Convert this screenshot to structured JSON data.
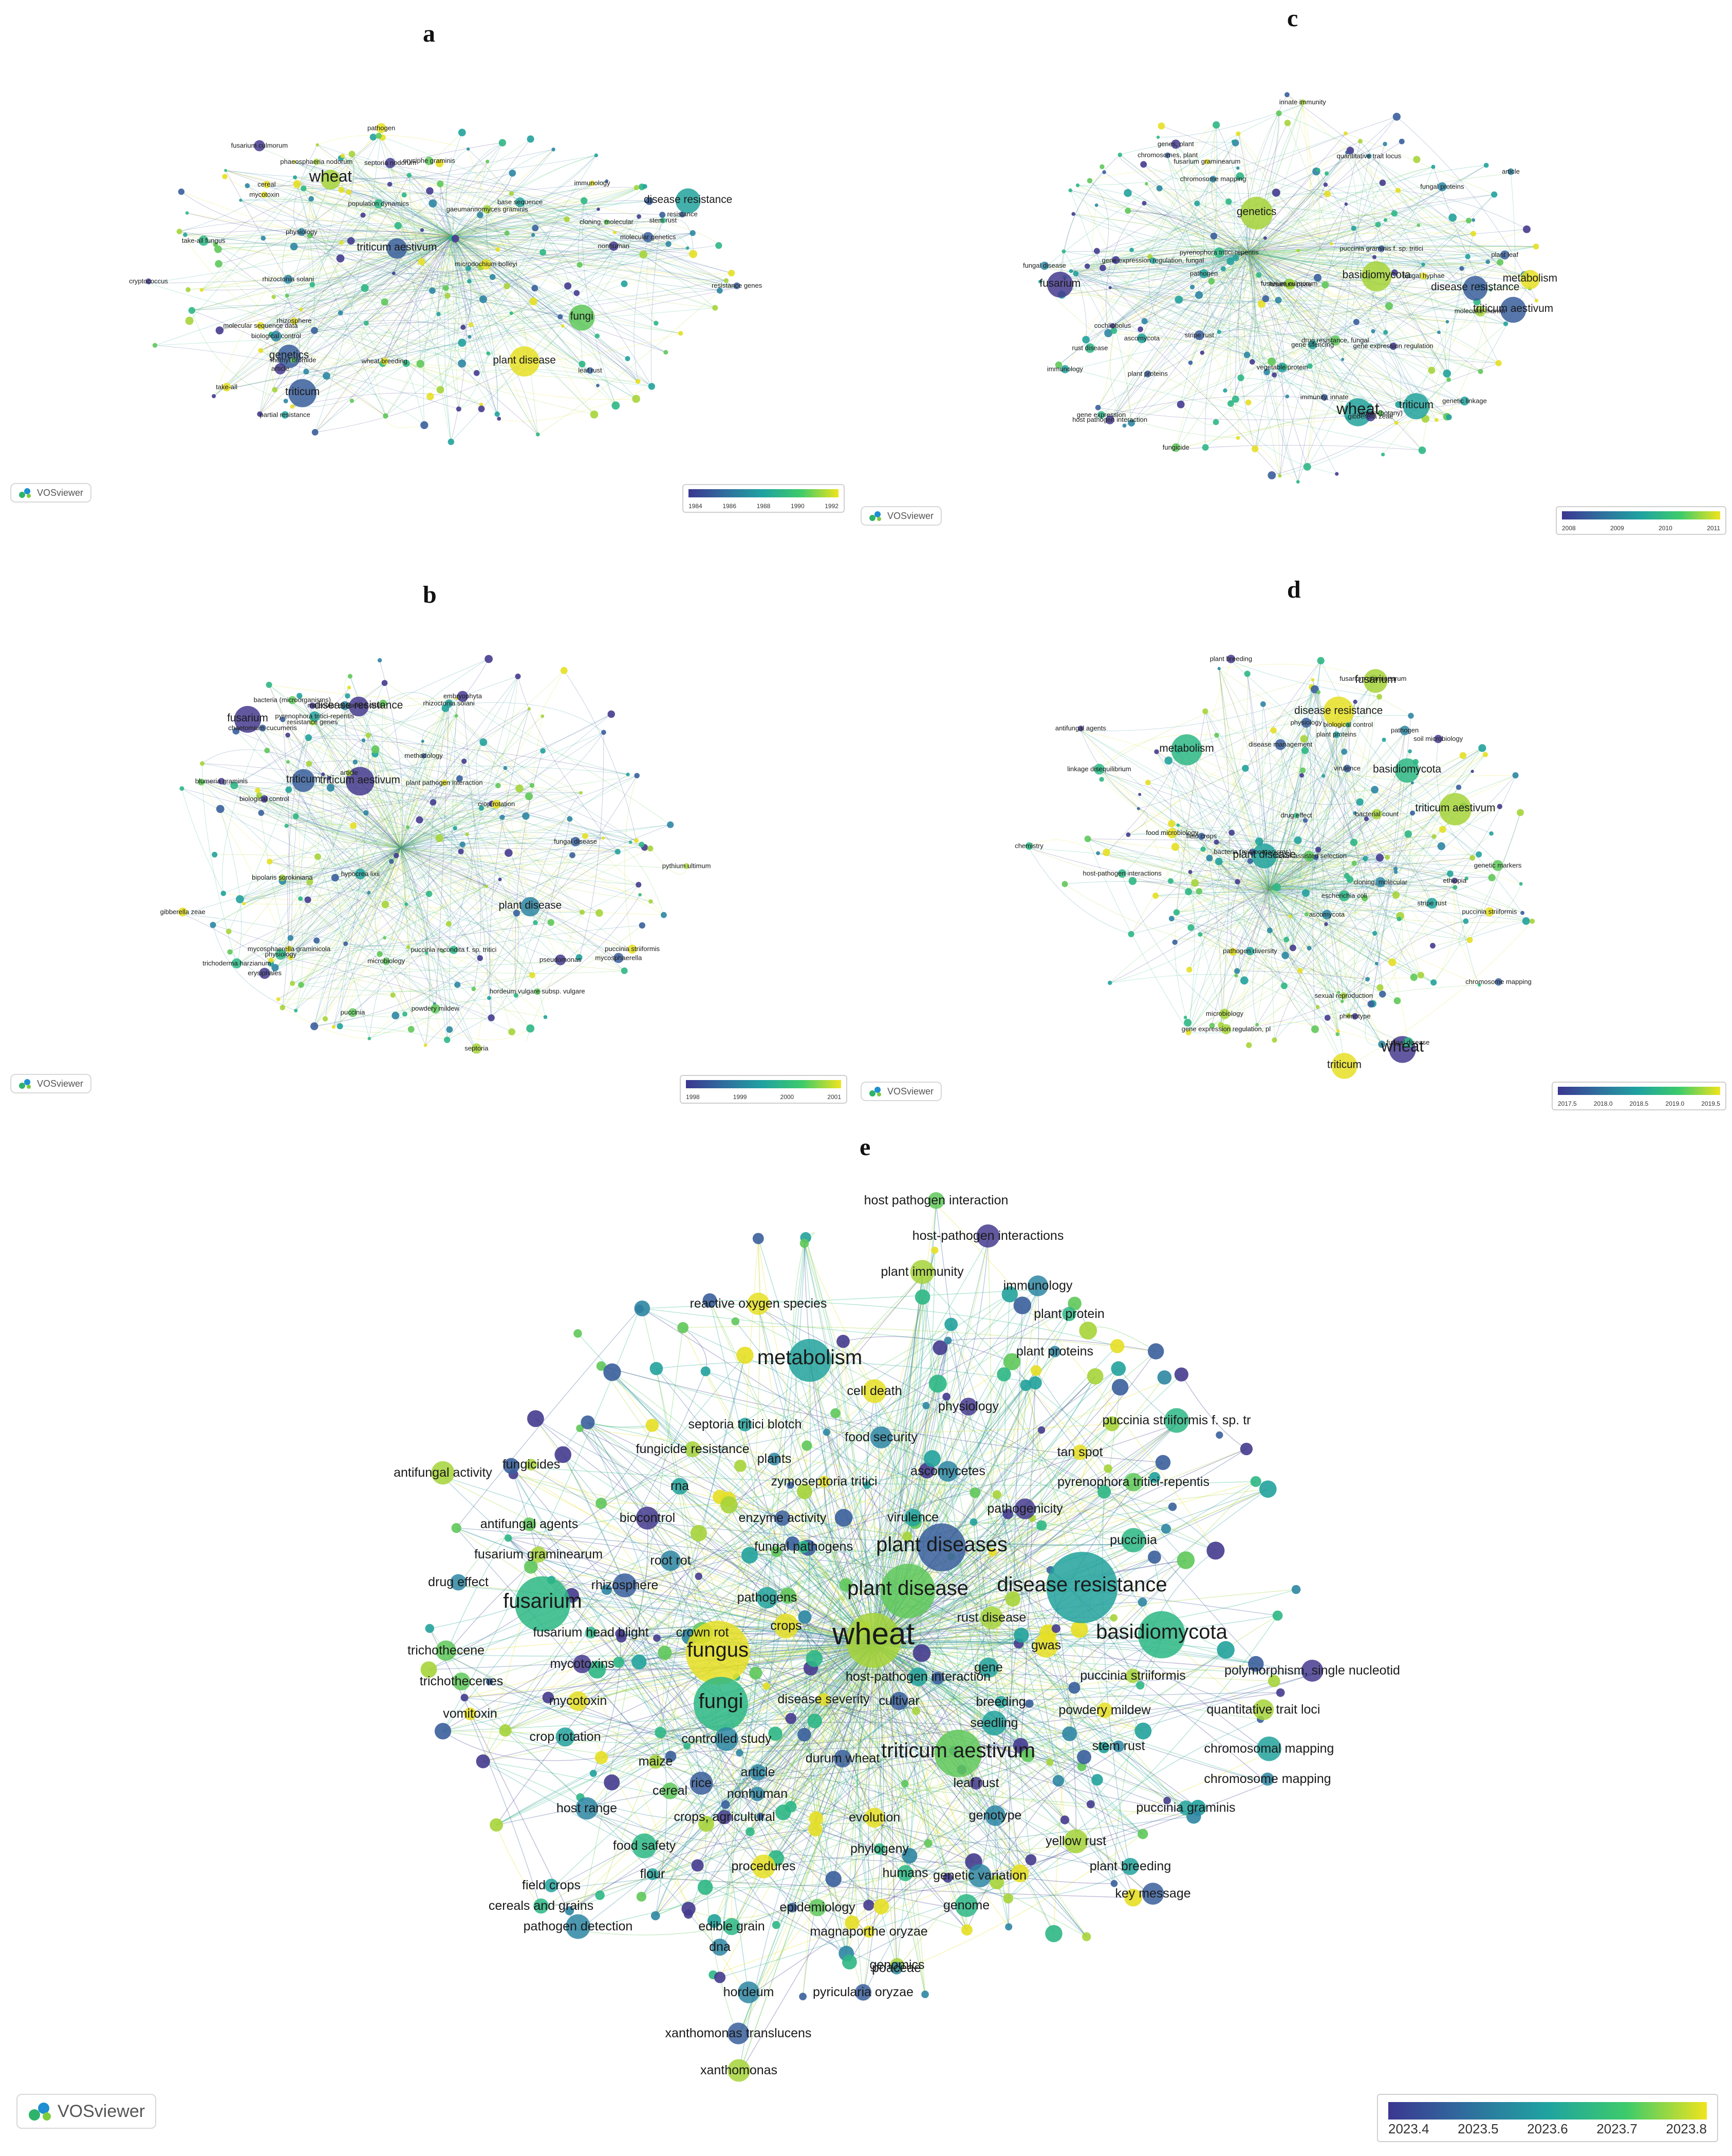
{
  "brand_label": "VOSviewer",
  "panels": [
    {
      "id": "a",
      "letter": "a",
      "timeline": [
        "1984",
        "1986",
        "1988",
        "1990",
        "1992"
      ],
      "labels": [
        {
          "t": "resistance genes"
        },
        {
          "t": "wheat breeding"
        },
        {
          "t": "septoria nodorum"
        },
        {
          "t": "partial resistance"
        },
        {
          "t": "erysiphe graminis"
        },
        {
          "t": "phaeosphaeria nodorum"
        },
        {
          "t": "gaeumannomyces graminis"
        },
        {
          "t": "take-all"
        },
        {
          "t": "triticum aestivum"
        },
        {
          "t": "wheat"
        },
        {
          "t": "resistance"
        },
        {
          "t": "leaf rust"
        },
        {
          "t": "stem rust"
        },
        {
          "t": "cereal"
        },
        {
          "t": "disease resistance"
        },
        {
          "t": "genetics"
        },
        {
          "t": "base sequence"
        },
        {
          "t": "plant disease"
        },
        {
          "t": "molecular sequence data"
        },
        {
          "t": "molecular genetics"
        },
        {
          "t": "pathogen"
        },
        {
          "t": "fungi"
        },
        {
          "t": "take-all fungus"
        },
        {
          "t": "rhizosphere"
        },
        {
          "t": "microdochium bolleyi"
        },
        {
          "t": "methyl bromide"
        },
        {
          "t": "fusarium culmorum"
        },
        {
          "t": "rhizoctonia solani"
        },
        {
          "t": "biological control"
        },
        {
          "t": "article"
        },
        {
          "t": "triticum"
        },
        {
          "t": "physiology"
        },
        {
          "t": "cloning, molecular"
        },
        {
          "t": "immunology"
        },
        {
          "t": "mycotoxin"
        },
        {
          "t": "cryptococcus"
        },
        {
          "t": "nonhuman"
        },
        {
          "t": "population dynamics"
        }
      ]
    },
    {
      "id": "b",
      "letter": "b",
      "timeline": [
        "1998",
        "1999",
        "2000",
        "2001"
      ],
      "labels": [
        {
          "t": "puccinia recondita f. sp. tritici"
        },
        {
          "t": "puccinia striiformis"
        },
        {
          "t": "resistance genes"
        },
        {
          "t": "puccinia"
        },
        {
          "t": "mycosphaerella"
        },
        {
          "t": "powdery mildew"
        },
        {
          "t": "mycosphaerella graminicola"
        },
        {
          "t": "plant pathogen interaction"
        },
        {
          "t": "disease resistance"
        },
        {
          "t": "erysiphales"
        },
        {
          "t": "blumeria graminis"
        },
        {
          "t": "embryophyta"
        },
        {
          "t": "pyrenophora tritici-repentis"
        },
        {
          "t": "fungal disease"
        },
        {
          "t": "triticum aestivum"
        },
        {
          "t": "plant disease"
        },
        {
          "t": "triticum"
        },
        {
          "t": "hordeum vulgare subsp. vulgare"
        },
        {
          "t": "bacteria (microorganisms)"
        },
        {
          "t": "fusarium"
        },
        {
          "t": "gibberella zeae"
        },
        {
          "t": "article"
        },
        {
          "t": "microbiology"
        },
        {
          "t": "biological control"
        },
        {
          "t": "rhizoctonia solani"
        },
        {
          "t": "trichoderma harzianum"
        },
        {
          "t": "pythium ultimum"
        },
        {
          "t": "bipolaris sorokiniana"
        },
        {
          "t": "crop rotation"
        },
        {
          "t": "septoria"
        },
        {
          "t": "molecular sequence data"
        },
        {
          "t": "physiology"
        },
        {
          "t": "chaetomium cucumeris"
        },
        {
          "t": "hypocrea lixii"
        },
        {
          "t": "pseudomonas"
        },
        {
          "t": "methodology"
        }
      ]
    },
    {
      "id": "c",
      "letter": "c",
      "timeline": [
        "2008",
        "2009",
        "2010",
        "2011"
      ],
      "labels": [
        {
          "t": "genetic linkage"
        },
        {
          "t": "chromosome mapping"
        },
        {
          "t": "molecular marker"
        },
        {
          "t": "chromosomes, plant"
        },
        {
          "t": "stripe rust"
        },
        {
          "t": "quantitative trait locus"
        },
        {
          "t": "puccinia graminis f. sp. tritici"
        },
        {
          "t": "pyrenophora tritici-repentis"
        },
        {
          "t": "plants (botany)"
        },
        {
          "t": "innate immunity"
        },
        {
          "t": "basidiomycota"
        },
        {
          "t": "rust disease"
        },
        {
          "t": "immunity, innate"
        },
        {
          "t": "genes, plant"
        },
        {
          "t": "immunology"
        },
        {
          "t": "disease resistance"
        },
        {
          "t": "triticum aestivum"
        },
        {
          "t": "genetics"
        },
        {
          "t": "triticum"
        },
        {
          "t": "plant proteins"
        },
        {
          "t": "wheat"
        },
        {
          "t": "article"
        },
        {
          "t": "host pathogen interaction"
        },
        {
          "t": "vegetable protein"
        },
        {
          "t": "gene silencing"
        },
        {
          "t": "pathogen"
        },
        {
          "t": "fungal disease"
        },
        {
          "t": "ascomycota"
        },
        {
          "t": "plant leaf"
        },
        {
          "t": "fusarium"
        },
        {
          "t": "gene expression"
        },
        {
          "t": "metabolism"
        },
        {
          "t": "gene expression regulation"
        },
        {
          "t": "gibberella zeae"
        },
        {
          "t": "fusarium graminearum"
        },
        {
          "t": "fungicide"
        },
        {
          "t": "fungal proteins"
        },
        {
          "t": "fungal hyphae"
        },
        {
          "t": "drug resistance, fungal"
        },
        {
          "t": "gene expression regulation, fungal"
        },
        {
          "t": "cochliobolus"
        },
        {
          "t": "fusarium culmorum"
        },
        {
          "t": "fusarium poae"
        }
      ]
    },
    {
      "id": "d",
      "letter": "d",
      "timeline": [
        "2017.5",
        "2018.0",
        "2018.5",
        "2019.0",
        "2019.5"
      ],
      "labels": [
        {
          "t": "cloning, molecular"
        },
        {
          "t": "gene expression regulation, pl"
        },
        {
          "t": "plant proteins"
        },
        {
          "t": "metabolism"
        },
        {
          "t": "physiology"
        },
        {
          "t": "host-pathogen interactions"
        },
        {
          "t": "chemistry"
        },
        {
          "t": "microbiology"
        },
        {
          "t": "triticum"
        },
        {
          "t": "plant disease"
        },
        {
          "t": "fusarium graminearum"
        },
        {
          "t": "fusarium"
        },
        {
          "t": "wheat"
        },
        {
          "t": "ascomycota"
        },
        {
          "t": "basidiomycota"
        },
        {
          "t": "disease resistance"
        },
        {
          "t": "chromosome mapping"
        },
        {
          "t": "triticum aestivum"
        },
        {
          "t": "phenotype"
        },
        {
          "t": "genetic markers"
        },
        {
          "t": "pathogen"
        },
        {
          "t": "virulence"
        },
        {
          "t": "fungal disease"
        },
        {
          "t": "stripe rust"
        },
        {
          "t": "plant breeding"
        },
        {
          "t": "puccinia striiformis"
        },
        {
          "t": "linkage disequilibrium"
        },
        {
          "t": "marker-assisted selection"
        },
        {
          "t": "disease management"
        },
        {
          "t": "field crops"
        },
        {
          "t": "ethiopia"
        },
        {
          "t": "pathogen diversity"
        },
        {
          "t": "sexual reproduction"
        },
        {
          "t": "bacterial count"
        },
        {
          "t": "soil microbiology"
        },
        {
          "t": "bacteria (microorganisms)"
        },
        {
          "t": "biological control"
        },
        {
          "t": "antifungal agents"
        },
        {
          "t": "drug effect"
        },
        {
          "t": "escherichia coli"
        },
        {
          "t": "food microbiology"
        }
      ]
    },
    {
      "id": "e",
      "letter": "e",
      "timeline": [
        "2023.4",
        "2023.5",
        "2023.6",
        "2023.7",
        "2023.8"
      ],
      "labels": [
        {
          "t": "host pathogen interaction"
        },
        {
          "t": "host-pathogen interactions"
        },
        {
          "t": "plant immunity"
        },
        {
          "t": "immunology"
        },
        {
          "t": "reactive oxygen species"
        },
        {
          "t": "plant protein"
        },
        {
          "t": "plant proteins"
        },
        {
          "t": "metabolism"
        },
        {
          "t": "cell death"
        },
        {
          "t": "physiology"
        },
        {
          "t": "septoria tritici blotch"
        },
        {
          "t": "food security"
        },
        {
          "t": "puccinia striiformis f. sp. tr"
        },
        {
          "t": "fungicides"
        },
        {
          "t": "fungicide resistance"
        },
        {
          "t": "plants"
        },
        {
          "t": "tan spot"
        },
        {
          "t": "antifungal activity"
        },
        {
          "t": "rna"
        },
        {
          "t": "zymoseptoria tritici"
        },
        {
          "t": "ascomycetes"
        },
        {
          "t": "pyrenophora tritici-repentis"
        },
        {
          "t": "pathogenicity"
        },
        {
          "t": "antifungal agents"
        },
        {
          "t": "biocontrol"
        },
        {
          "t": "enzyme activity"
        },
        {
          "t": "virulence"
        },
        {
          "t": "fungal pathogens"
        },
        {
          "t": "plant diseases"
        },
        {
          "t": "puccinia"
        },
        {
          "t": "fusarium graminearum"
        },
        {
          "t": "root rot"
        },
        {
          "t": "drug effect"
        },
        {
          "t": "rhizosphere"
        },
        {
          "t": "plant disease"
        },
        {
          "t": "disease resistance"
        },
        {
          "t": "pathogens"
        },
        {
          "t": "fusarium"
        },
        {
          "t": "crops"
        },
        {
          "t": "rust disease"
        },
        {
          "t": "fusarium head blight"
        },
        {
          "t": "crown rot"
        },
        {
          "t": "wheat"
        },
        {
          "t": "basidiomycota"
        },
        {
          "t": "gwas"
        },
        {
          "t": "trichothecene"
        },
        {
          "t": "fungus"
        },
        {
          "t": "mycotoxins"
        },
        {
          "t": "gene"
        },
        {
          "t": "trichothecenes"
        },
        {
          "t": "host-pathogen interaction"
        },
        {
          "t": "puccinia striiformis"
        },
        {
          "t": "polymorphism, single nucleotid"
        },
        {
          "t": "breeding"
        },
        {
          "t": "mycotoxin"
        },
        {
          "t": "fungi"
        },
        {
          "t": "disease severity"
        },
        {
          "t": "cultivar"
        },
        {
          "t": "powdery mildew"
        },
        {
          "t": "quantitative trait loci"
        },
        {
          "t": "vomitoxin"
        },
        {
          "t": "seedling"
        },
        {
          "t": "crop rotation"
        },
        {
          "t": "controlled study"
        },
        {
          "t": "stem rust"
        },
        {
          "t": "chromosomal mapping"
        },
        {
          "t": "maize"
        },
        {
          "t": "durum wheat"
        },
        {
          "t": "triticum aestivum"
        },
        {
          "t": "article"
        },
        {
          "t": "chromosome mapping"
        },
        {
          "t": "cereal"
        },
        {
          "t": "rice"
        },
        {
          "t": "nonhuman"
        },
        {
          "t": "leaf rust"
        },
        {
          "t": "host range"
        },
        {
          "t": "puccinia graminis"
        },
        {
          "t": "genotype"
        },
        {
          "t": "crops, agricultural"
        },
        {
          "t": "evolution"
        },
        {
          "t": "yellow rust"
        },
        {
          "t": "food safety"
        },
        {
          "t": "phylogeny"
        },
        {
          "t": "plant breeding"
        },
        {
          "t": "procedures"
        },
        {
          "t": "flour"
        },
        {
          "t": "humans"
        },
        {
          "t": "genetic variation"
        },
        {
          "t": "key message"
        },
        {
          "t": "field crops"
        },
        {
          "t": "cereals and grains"
        },
        {
          "t": "genome"
        },
        {
          "t": "epidemiology"
        },
        {
          "t": "pathogen detection"
        },
        {
          "t": "edible grain"
        },
        {
          "t": "magnaporthe oryzae"
        },
        {
          "t": "dna"
        },
        {
          "t": "genomics"
        },
        {
          "t": "poaceae"
        },
        {
          "t": "hordeum"
        },
        {
          "t": "pyricularia oryzae"
        },
        {
          "t": "xanthomonas translucens"
        },
        {
          "t": "xanthomonas"
        }
      ]
    }
  ]
}
